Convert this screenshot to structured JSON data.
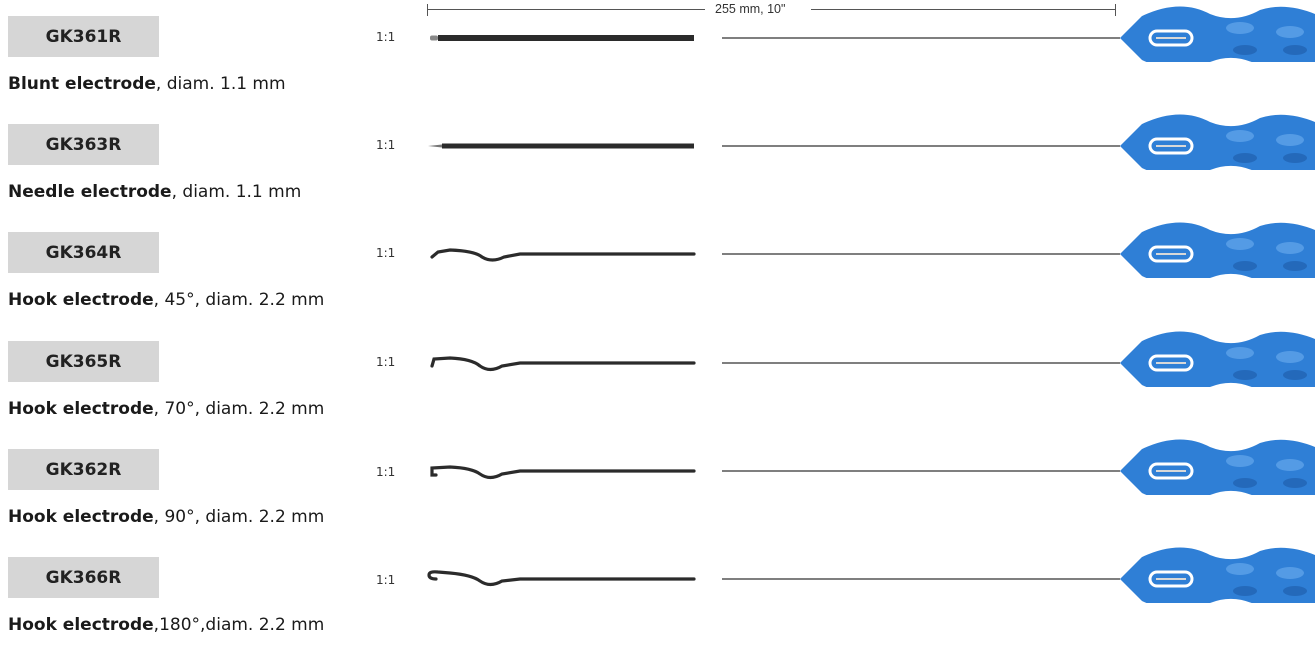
{
  "dimension": {
    "label": "255 mm, 10\""
  },
  "products": [
    {
      "code": "GK361R",
      "scale": "1:1",
      "name": "Blunt electrode",
      "spec": ", diam. 1.1 mm",
      "tip": "blunt"
    },
    {
      "code": "GK363R",
      "scale": "1:1",
      "name": "Needle electrode",
      "spec": ", diam. 1.1 mm",
      "tip": "needle"
    },
    {
      "code": "GK364R",
      "scale": "1:1",
      "name": "Hook electrode",
      "spec": ", 45°, diam. 2.2 mm",
      "tip": "hook-45"
    },
    {
      "code": "GK365R",
      "scale": "1:1",
      "name": "Hook electrode",
      "spec": ", 70°, diam. 2.2 mm",
      "tip": "hook-70"
    },
    {
      "code": "GK362R",
      "scale": "1:1",
      "name": "Hook electrode",
      "spec": ", 90°, diam. 2.2 mm",
      "tip": "hook-90"
    },
    {
      "code": "GK366R",
      "scale": "1:1",
      "name": "Hook electrode",
      "spec": ",180°,diam. 2.2 mm",
      "tip": "hook-180"
    }
  ],
  "colors": {
    "code_box": "#d6d6d6",
    "handle": "#2f7fd6",
    "shaft": "#2b2b2b"
  }
}
